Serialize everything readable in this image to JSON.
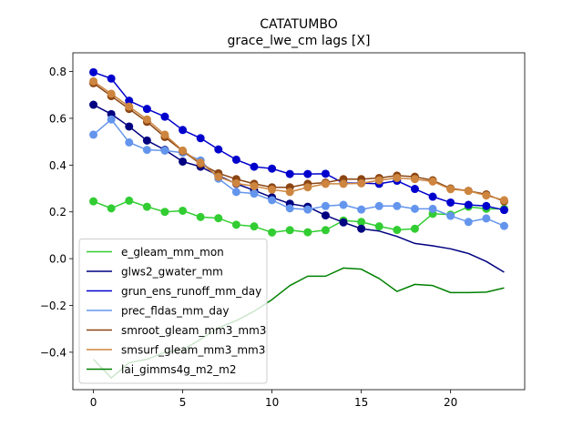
{
  "chart_data": {
    "type": "line",
    "title": "CATATUMBO",
    "subtitle": "grace_lwe_cm lags [X]",
    "xlabel": "",
    "ylabel": "",
    "xlim": [
      -1.15,
      24.15
    ],
    "ylim": [
      -0.56,
      0.88
    ],
    "xticks": [
      0,
      5,
      10,
      15,
      20
    ],
    "yticks": [
      -0.4,
      -0.2,
      0.0,
      0.2,
      0.4,
      0.6,
      0.8
    ],
    "ytick_labels": [
      "−0.4",
      "−0.2",
      "0.0",
      "0.2",
      "0.4",
      "0.6",
      "0.8"
    ],
    "grid": false,
    "legend_position": "lower-left",
    "x": [
      0,
      1,
      2,
      3,
      4,
      5,
      6,
      7,
      8,
      9,
      10,
      11,
      12,
      13,
      14,
      15,
      16,
      17,
      18,
      19,
      20,
      21,
      22,
      23
    ],
    "series": [
      {
        "name": "e_gleam_mm_mon",
        "color": "#32cd32",
        "markers": [
          0,
          1,
          2,
          3,
          4,
          5,
          6,
          7,
          8,
          9,
          10,
          11,
          12,
          13,
          14,
          15,
          16,
          17,
          18,
          19,
          20,
          21,
          22,
          23
        ],
        "values": [
          0.245,
          0.215,
          0.248,
          0.222,
          0.2,
          0.205,
          0.178,
          0.173,
          0.145,
          0.138,
          0.112,
          0.122,
          0.113,
          0.122,
          0.163,
          0.157,
          0.138,
          0.123,
          0.128,
          0.192,
          0.188,
          0.222,
          0.213,
          0.213
        ]
      },
      {
        "name": "glws2_gwater_mm",
        "color": "#000080",
        "markers": [
          0,
          1,
          2,
          3,
          4,
          5,
          6,
          7,
          8,
          9,
          10,
          11,
          12,
          13,
          14,
          15
        ],
        "values": [
          0.658,
          0.618,
          0.565,
          0.505,
          0.465,
          0.415,
          0.393,
          0.355,
          0.32,
          0.292,
          0.262,
          0.235,
          0.222,
          0.185,
          0.155,
          0.128,
          0.118,
          0.095,
          0.065,
          0.055,
          0.042,
          0.022,
          -0.012,
          -0.058
        ]
      },
      {
        "name": "grun_ens_runoff_mm_day",
        "color": "#0000cd",
        "markers": [
          0,
          1,
          2,
          3,
          4,
          5,
          6,
          7,
          8,
          9,
          10,
          11,
          12,
          13,
          14,
          15,
          16,
          17,
          18,
          19,
          20,
          21,
          22,
          23
        ],
        "values": [
          0.797,
          0.77,
          0.675,
          0.64,
          0.607,
          0.55,
          0.515,
          0.467,
          0.423,
          0.393,
          0.385,
          0.362,
          0.362,
          0.363,
          0.323,
          0.323,
          0.32,
          0.333,
          0.298,
          0.265,
          0.24,
          0.23,
          0.225,
          0.208
        ]
      },
      {
        "name": "prec_fldas_mm_day",
        "color": "#6495ed",
        "markers": [
          0,
          1,
          2,
          3,
          4,
          5,
          6,
          7,
          8,
          9,
          10,
          11,
          12,
          13,
          14,
          15,
          16,
          17,
          18,
          19,
          20,
          21,
          22,
          23
        ],
        "values": [
          0.53,
          0.595,
          0.497,
          0.465,
          0.462,
          0.453,
          0.42,
          0.342,
          0.285,
          0.278,
          0.25,
          0.215,
          0.21,
          0.225,
          0.23,
          0.21,
          0.225,
          0.225,
          0.213,
          0.213,
          0.183,
          0.157,
          0.172,
          0.14
        ]
      },
      {
        "name": "smroot_gleam_mm3_mm3",
        "color": "#8b4513",
        "markers": [
          0,
          1,
          2,
          3,
          4,
          5,
          6,
          7,
          8,
          9,
          10,
          11,
          12,
          13,
          14,
          15,
          16,
          17,
          18,
          19,
          20,
          21,
          22,
          23
        ],
        "values": [
          0.75,
          0.695,
          0.64,
          0.585,
          0.52,
          0.46,
          0.405,
          0.365,
          0.34,
          0.32,
          0.305,
          0.305,
          0.32,
          0.325,
          0.34,
          0.34,
          0.345,
          0.355,
          0.35,
          0.335,
          0.3,
          0.29,
          0.275,
          0.245
        ]
      },
      {
        "name": "smsurf_gleam_mm3_mm3",
        "color": "#cd853f",
        "markers": [
          0,
          1,
          2,
          3,
          4,
          5,
          6,
          7,
          8,
          9,
          10,
          11,
          12,
          13,
          14,
          15,
          16,
          17,
          18,
          19,
          20,
          21,
          22,
          23
        ],
        "values": [
          0.758,
          0.705,
          0.65,
          0.595,
          0.53,
          0.462,
          0.41,
          0.35,
          0.322,
          0.31,
          0.295,
          0.285,
          0.305,
          0.32,
          0.32,
          0.322,
          0.335,
          0.345,
          0.34,
          0.33,
          0.297,
          0.29,
          0.27,
          0.25
        ]
      },
      {
        "name": "lai_gimms4g_m2_m2",
        "color": "#008000",
        "markers": [],
        "values": [
          -0.43,
          -0.51,
          -0.445,
          -0.43,
          -0.4,
          -0.39,
          -0.345,
          -0.295,
          -0.265,
          -0.225,
          -0.175,
          -0.115,
          -0.075,
          -0.075,
          -0.04,
          -0.045,
          -0.085,
          -0.14,
          -0.11,
          -0.115,
          -0.145,
          -0.145,
          -0.143,
          -0.125
        ]
      }
    ]
  }
}
